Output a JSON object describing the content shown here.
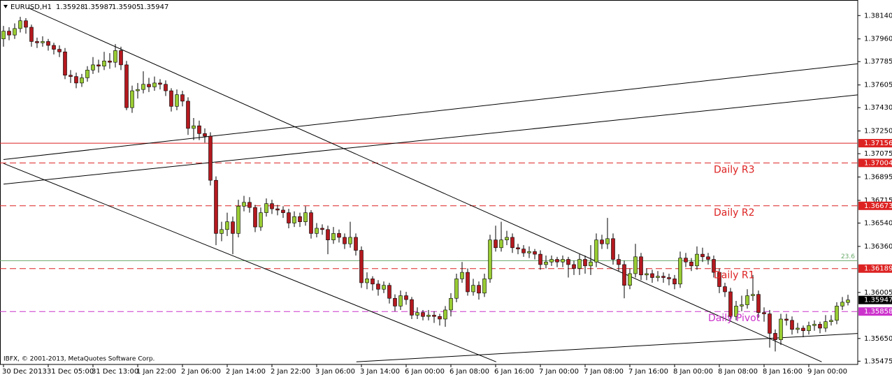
{
  "chart_data": {
    "type": "candlestick",
    "symbol": "EURUSD,H1",
    "copyright": "IBFX, © 2001-2013, MetaQuotes Software Corp.",
    "up_color": "#99cc33",
    "down_color": "#b3191f",
    "wick_color": "#000000",
    "current_color": "#000000",
    "categories": [
      "30 Dec 2013",
      null,
      null,
      null,
      null,
      null,
      null,
      null,
      "31 Dec 05:00",
      null,
      null,
      null,
      null,
      null,
      null,
      null,
      "31 Dec 13:00",
      null,
      null,
      null,
      null,
      null,
      null,
      null,
      "1 Jan 22:00",
      null,
      null,
      null,
      null,
      null,
      null,
      null,
      "2 Jan 06:00",
      null,
      null,
      null,
      null,
      null,
      null,
      null,
      "2 Jan 14:00",
      null,
      null,
      null,
      null,
      null,
      null,
      null,
      "2 Jan 22:00",
      null,
      null,
      null,
      null,
      null,
      null,
      null,
      "3 Jan 06:00",
      null,
      null,
      null,
      null,
      null,
      null,
      null,
      "3 Jan 14:00",
      null,
      null,
      null,
      null,
      null,
      null,
      null,
      "6 Jan 00:00",
      null,
      null,
      null,
      null,
      null,
      null,
      null,
      "6 Jan 08:00",
      null,
      null,
      null,
      null,
      null,
      null,
      null,
      "6 Jan 16:00",
      null,
      null,
      null,
      null,
      null,
      null,
      null,
      "7 Jan 00:00",
      null,
      null,
      null,
      null,
      null,
      null,
      null,
      "7 Jan 08:00",
      null,
      null,
      null,
      null,
      null,
      null,
      null,
      "7 Jan 16:00",
      null,
      null,
      null,
      null,
      null,
      null,
      null,
      "8 Jan 00:00",
      null,
      null,
      null,
      null,
      null,
      null,
      null,
      "8 Jan 08:00",
      null,
      null,
      null,
      null,
      null,
      null,
      null,
      "8 Jan 16:00",
      null,
      null,
      null,
      null,
      null,
      null,
      null,
      "9 Jan 00:00",
      null,
      null,
      null,
      null,
      null,
      null,
      null
    ],
    "open": [
      1.3796,
      1.3802,
      1.3799,
      1.3804,
      1.381,
      1.3805,
      1.3794,
      1.3793,
      1.3794,
      1.3791,
      1.3788,
      1.3786,
      1.3768,
      1.3767,
      1.3762,
      1.3766,
      1.3772,
      1.3776,
      1.3775,
      1.3779,
      1.3778,
      1.3787,
      1.3776,
      1.3743,
      1.3756,
      1.3757,
      1.3761,
      1.3759,
      1.3762,
      1.3761,
      1.3756,
      1.3744,
      1.3753,
      1.3748,
      1.3727,
      1.3729,
      1.3723,
      1.3721,
      1.3687,
      1.3646,
      1.3649,
      1.3655,
      1.3646,
      1.3667,
      1.367,
      1.3666,
      1.3651,
      1.3662,
      1.3669,
      1.3665,
      1.3664,
      1.3662,
      1.3654,
      1.3659,
      1.3655,
      1.3662,
      1.3646,
      1.365,
      1.3649,
      1.3641,
      1.3646,
      1.3643,
      1.3638,
      1.3643,
      1.3633,
      1.3608,
      1.3611,
      1.3607,
      1.3603,
      1.3606,
      1.3596,
      1.359,
      1.3598,
      1.3595,
      1.3583,
      1.3585,
      1.3582,
      1.3583,
      1.3582,
      1.358,
      1.3587,
      1.3596,
      1.3611,
      1.3616,
      1.3601,
      1.3606,
      1.36,
      1.3611,
      1.3641,
      1.3635,
      1.3641,
      1.3643,
      1.3635,
      1.3634,
      1.3631,
      1.3632,
      1.363,
      1.3622,
      1.3624,
      1.3626,
      1.3624,
      1.3626,
      1.3622,
      1.3619,
      1.3626,
      1.3621,
      1.3624,
      1.3641,
      1.3638,
      1.3642,
      1.3626,
      1.3622,
      1.3606,
      1.3615,
      1.3628,
      1.3614,
      1.3615,
      1.3612,
      1.3613,
      1.3612,
      1.3611,
      1.3607,
      1.3627,
      1.3624,
      1.3621,
      1.363,
      1.3628,
      1.3626,
      1.3616,
      1.3605,
      1.3601,
      1.3582,
      1.359,
      1.3591,
      1.3598,
      1.3599,
      1.3585,
      1.3584,
      1.3569,
      1.3564,
      1.358,
      1.3579,
      1.3572,
      1.3573,
      1.3571,
      1.3575,
      1.3576,
      1.3573,
      1.3578,
      1.3579,
      1.359,
      1.35928
    ],
    "high": [
      1.3806,
      1.3805,
      1.3808,
      1.3813,
      1.3812,
      1.3807,
      1.3797,
      1.3798,
      1.3796,
      1.3793,
      1.3791,
      1.3789,
      1.3772,
      1.377,
      1.3769,
      1.3775,
      1.3782,
      1.378,
      1.3786,
      1.3785,
      1.3792,
      1.379,
      1.3779,
      1.376,
      1.3762,
      1.3771,
      1.3766,
      1.3767,
      1.3765,
      1.3764,
      1.3758,
      1.3757,
      1.3756,
      1.3751,
      1.3735,
      1.3733,
      1.3727,
      1.3724,
      1.369,
      1.3655,
      1.3662,
      1.3659,
      1.3672,
      1.3675,
      1.3674,
      1.3668,
      1.3666,
      1.3673,
      1.3672,
      1.3668,
      1.3667,
      1.3665,
      1.3663,
      1.3662,
      1.3667,
      1.3664,
      1.3654,
      1.3653,
      1.3652,
      1.3651,
      1.3649,
      1.3646,
      1.3655,
      1.3646,
      1.3636,
      1.3616,
      1.3613,
      1.361,
      1.3609,
      1.3608,
      1.3599,
      1.3602,
      1.3601,
      1.3597,
      1.3589,
      1.3587,
      1.3587,
      1.3586,
      1.3584,
      1.359,
      1.36,
      1.3615,
      1.3624,
      1.3619,
      1.3611,
      1.3609,
      1.3615,
      1.3645,
      1.3652,
      1.3655,
      1.3648,
      1.3646,
      1.3638,
      1.3637,
      1.3636,
      1.3634,
      1.3633,
      1.3629,
      1.3629,
      1.3628,
      1.3629,
      1.3628,
      1.3625,
      1.363,
      1.3629,
      1.3637,
      1.3646,
      1.3645,
      1.3658,
      1.3646,
      1.363,
      1.3625,
      1.3619,
      1.3638,
      1.3631,
      1.3619,
      1.3618,
      1.3617,
      1.3616,
      1.3615,
      1.3614,
      1.3632,
      1.3631,
      1.3627,
      1.3636,
      1.3635,
      1.3631,
      1.3629,
      1.3619,
      1.3608,
      1.3604,
      1.3594,
      1.3598,
      1.3603,
      1.3614,
      1.3602,
      1.3589,
      1.3587,
      1.3572,
      1.3584,
      1.3584,
      1.3582,
      1.3577,
      1.3575,
      1.3578,
      1.3579,
      1.3578,
      1.3583,
      1.3583,
      1.3593,
      1.3597,
      1.35987
    ],
    "low": [
      1.379,
      1.3795,
      1.3796,
      1.3801,
      1.38,
      1.379,
      1.3789,
      1.379,
      1.3787,
      1.3784,
      1.3782,
      1.3765,
      1.3762,
      1.3758,
      1.3759,
      1.3763,
      1.3769,
      1.377,
      1.3772,
      1.3773,
      1.3774,
      1.3772,
      1.3741,
      1.3739,
      1.375,
      1.3754,
      1.3755,
      1.3756,
      1.3757,
      1.3752,
      1.374,
      1.3741,
      1.3744,
      1.3722,
      1.3718,
      1.3718,
      1.3716,
      1.3683,
      1.3637,
      1.364,
      1.3644,
      1.363,
      1.3643,
      1.3663,
      1.3662,
      1.3647,
      1.3648,
      1.3659,
      1.3661,
      1.366,
      1.3658,
      1.365,
      1.3651,
      1.3651,
      1.3652,
      1.3642,
      1.3643,
      1.3645,
      1.363,
      1.3638,
      1.3639,
      1.3634,
      1.3635,
      1.3629,
      1.3604,
      1.3603,
      1.3602,
      1.3598,
      1.36,
      1.3592,
      1.3586,
      1.3587,
      1.3591,
      1.358,
      1.358,
      1.3579,
      1.3579,
      1.3577,
      1.3575,
      1.3574,
      1.3582,
      1.3593,
      1.3608,
      1.3598,
      1.3598,
      1.3595,
      1.3597,
      1.3608,
      1.3632,
      1.3632,
      1.3637,
      1.3631,
      1.363,
      1.3628,
      1.3627,
      1.3626,
      1.3618,
      1.3619,
      1.3621,
      1.362,
      1.362,
      1.3612,
      1.3614,
      1.3614,
      1.3615,
      1.3614,
      1.362,
      1.3634,
      1.3634,
      1.3622,
      1.3617,
      1.3596,
      1.3603,
      1.3612,
      1.361,
      1.361,
      1.3608,
      1.3609,
      1.3608,
      1.3606,
      1.3603,
      1.3604,
      1.362,
      1.3617,
      1.3618,
      1.3624,
      1.3622,
      1.3612,
      1.36,
      1.3597,
      1.3578,
      1.3579,
      1.3586,
      1.3588,
      1.3594,
      1.3581,
      1.3578,
      1.3558,
      1.3555,
      1.356,
      1.3575,
      1.3568,
      1.3569,
      1.3566,
      1.3568,
      1.3571,
      1.3569,
      1.357,
      1.3575,
      1.3576,
      1.3587,
      1.35905
    ],
    "close": [
      1.3802,
      1.3799,
      1.3804,
      1.381,
      1.3805,
      1.3794,
      1.3793,
      1.3794,
      1.3791,
      1.3788,
      1.3786,
      1.3768,
      1.3767,
      1.3762,
      1.3766,
      1.3772,
      1.3776,
      1.3775,
      1.3779,
      1.3778,
      1.3787,
      1.3776,
      1.3743,
      1.3756,
      1.3757,
      1.3761,
      1.3759,
      1.3762,
      1.3761,
      1.3756,
      1.3744,
      1.3753,
      1.3748,
      1.3727,
      1.3729,
      1.3723,
      1.3721,
      1.3687,
      1.3646,
      1.3649,
      1.3655,
      1.3646,
      1.3667,
      1.367,
      1.3666,
      1.3651,
      1.3662,
      1.3669,
      1.3665,
      1.3664,
      1.3662,
      1.3654,
      1.3659,
      1.3655,
      1.3662,
      1.3646,
      1.365,
      1.3649,
      1.3641,
      1.3646,
      1.3643,
      1.3638,
      1.3643,
      1.3633,
      1.3608,
      1.3611,
      1.3607,
      1.3603,
      1.3606,
      1.3596,
      1.359,
      1.3598,
      1.3595,
      1.3583,
      1.3585,
      1.3582,
      1.3583,
      1.3582,
      1.358,
      1.3587,
      1.3596,
      1.3611,
      1.3616,
      1.3601,
      1.3606,
      1.36,
      1.3611,
      1.3641,
      1.3635,
      1.3641,
      1.3643,
      1.3635,
      1.3634,
      1.3631,
      1.3632,
      1.363,
      1.3622,
      1.3624,
      1.3626,
      1.3624,
      1.3626,
      1.3622,
      1.3619,
      1.3626,
      1.3621,
      1.3624,
      1.3641,
      1.3638,
      1.3642,
      1.3626,
      1.3622,
      1.3606,
      1.3615,
      1.3628,
      1.3614,
      1.3615,
      1.3612,
      1.3613,
      1.3612,
      1.3611,
      1.3607,
      1.3627,
      1.3624,
      1.3621,
      1.363,
      1.3628,
      1.3626,
      1.3616,
      1.3605,
      1.3601,
      1.3582,
      1.359,
      1.3591,
      1.3598,
      1.3599,
      1.3585,
      1.3584,
      1.3569,
      1.3564,
      1.358,
      1.3579,
      1.3572,
      1.3573,
      1.3571,
      1.3575,
      1.3576,
      1.3573,
      1.3578,
      1.3579,
      1.359,
      1.3593,
      1.35947
    ],
    "ylim": [
      1.3545,
      1.3826
    ],
    "yticks": [
      {
        "value": 1.3814,
        "label": "1.38140"
      },
      {
        "value": 1.3796,
        "label": "1.37960"
      },
      1.37785,
      1.37605,
      {
        "value": 1.3743,
        "label": "1.37430"
      },
      {
        "value": 1.3725,
        "label": "1.37250"
      },
      1.37075,
      1.36895,
      1.36715,
      {
        "value": 1.3654,
        "label": "1.36540"
      },
      {
        "value": 1.3636,
        "label": "1.36360"
      },
      1.36005,
      {
        "value": 1.3565,
        "label": "1.35650"
      },
      1.35475
    ],
    "levels": [
      {
        "value": 1.37156,
        "color": "#dd2222",
        "style": "solid"
      },
      {
        "value": 1.37004,
        "color": "#dd2222",
        "style": "dashed",
        "label": "Daily R3"
      },
      {
        "value": 1.36673,
        "color": "#dd2222",
        "style": "dashed",
        "label": "Daily R2"
      },
      {
        "value": 1.36189,
        "color": "#dd2222",
        "style": "dashed",
        "label": "Daily R1"
      },
      {
        "value": 1.35858,
        "color": "#cc33cc",
        "style": "dashed",
        "label": "Daily Pivot"
      }
    ],
    "fib": {
      "value": 1.3625,
      "label": "23.6",
      "color": "#6aaa6a"
    },
    "trendlines": [
      {
        "x": [
          4.4,
          146.3
        ],
        "y": [
          1.382,
          1.3547
        ]
      },
      {
        "x": [
          0,
          88.1
        ],
        "y": [
          1.37,
          1.3547
        ]
      },
      {
        "x": [
          0,
          153.1
        ],
        "y": [
          1.3703,
          1.3777
        ]
      },
      {
        "x": [
          0,
          153.1
        ],
        "y": [
          1.3684,
          1.3753
        ]
      },
      {
        "x": [
          63.1,
          153.1
        ],
        "y": [
          1.3547,
          1.3569
        ]
      }
    ]
  }
}
